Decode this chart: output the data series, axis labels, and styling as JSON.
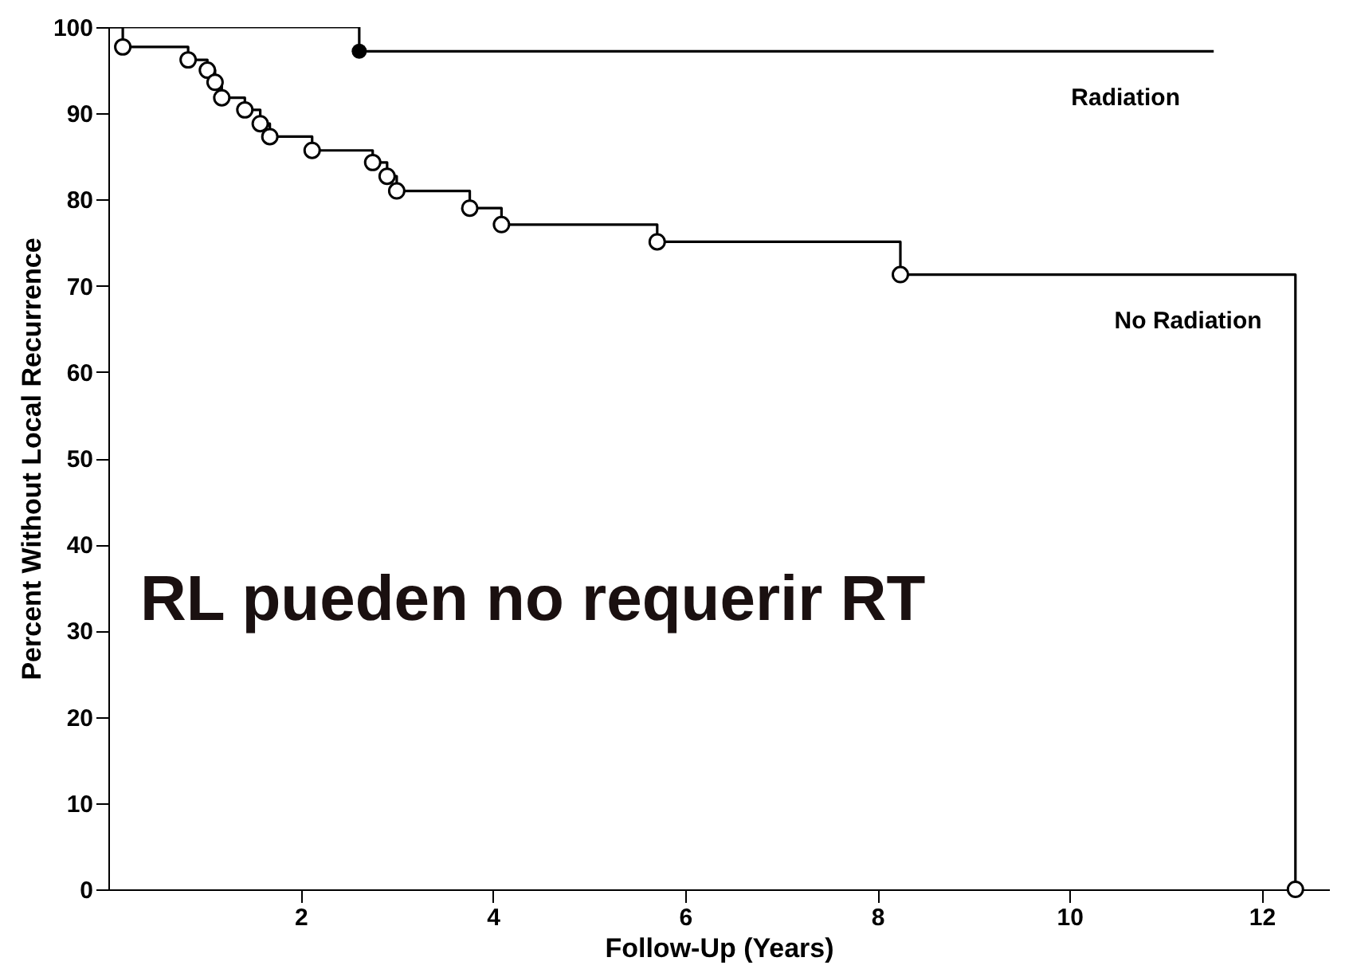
{
  "chart_data": {
    "type": "step",
    "xlabel": "Follow-Up (Years)",
    "ylabel": "Percent Without Local Recurrence",
    "annotations": [
      "RL pueden no requerir RT"
    ],
    "xlim": [
      0,
      12.7
    ],
    "xticks": [
      2,
      4,
      6,
      8,
      10,
      12
    ],
    "ylim": [
      0,
      100
    ],
    "yticks": [
      0,
      10,
      20,
      30,
      40,
      50,
      60,
      70,
      80,
      90,
      100
    ],
    "grid": false,
    "series": [
      {
        "name": "Radiation",
        "color": "#000000",
        "x": [
          0,
          2.61,
          11.5
        ],
        "values": [
          100,
          97.2,
          97.2
        ]
      },
      {
        "name": "No Radiation",
        "color": "#000000",
        "x": [
          0,
          0.15,
          0.83,
          1.03,
          1.11,
          1.18,
          1.42,
          1.58,
          1.68,
          2.12,
          2.75,
          2.9,
          3.0,
          3.76,
          4.09,
          5.71,
          8.24,
          12.35
        ],
        "values": [
          100,
          97.7,
          96.2,
          95.0,
          93.6,
          91.8,
          90.4,
          88.8,
          87.3,
          85.7,
          84.3,
          82.7,
          81.0,
          79.0,
          77.1,
          75.1,
          71.3,
          0
        ]
      },
      {
        "type": "scatter",
        "color": "#000000",
        "marker": "circle",
        "x": [
          2.61
        ],
        "values": [
          97.2
        ]
      },
      {
        "type": "scatter",
        "color": "#000000",
        "marker": "circle",
        "x": [
          0.15,
          0.83,
          1.03,
          1.11,
          1.18,
          1.42,
          1.58,
          1.68,
          2.12,
          2.75,
          2.9,
          3.0,
          3.76,
          4.09,
          5.71,
          8.24,
          12.35
        ],
        "values": [
          97.7,
          96.2,
          95.0,
          93.6,
          91.8,
          90.4,
          88.8,
          87.3,
          85.7,
          84.3,
          82.7,
          81.0,
          79.0,
          77.1,
          75.1,
          71.3,
          0
        ]
      }
    ]
  }
}
